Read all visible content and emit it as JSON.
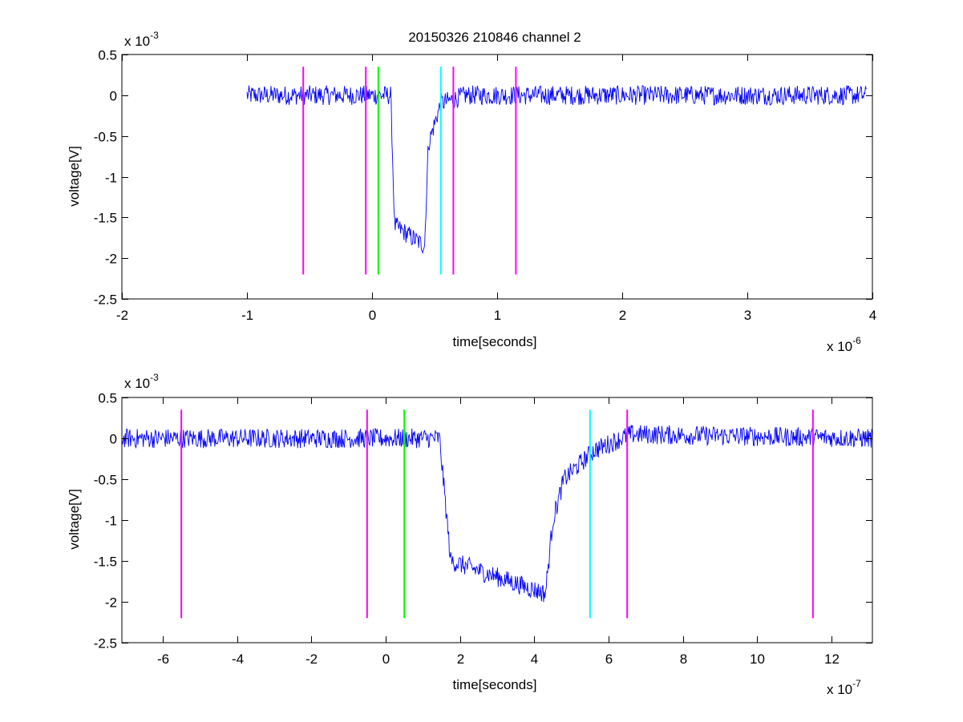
{
  "chart_data": [
    {
      "type": "line",
      "title": "20150326 210846 channel 2",
      "xlabel": "time[seconds]",
      "ylabel": "voltage[V]",
      "x_exponent_label": "x 10",
      "x_exponent": "-6",
      "y_exponent_label": "x 10",
      "y_exponent": "-3",
      "xlim": [
        -2,
        4
      ],
      "ylim": [
        -2.5,
        0.5
      ],
      "xticks": [
        -2,
        -1,
        0,
        1,
        2,
        3,
        4
      ],
      "xtick_labels": [
        "-2",
        "-1",
        "0",
        "1",
        "2",
        "3",
        "4"
      ],
      "yticks": [
        -2.5,
        -2,
        -1.5,
        -1,
        -0.5,
        0,
        0.5
      ],
      "ytick_labels": [
        "-2.5",
        "-2",
        "-1.5",
        "-1",
        "-0.5",
        "0",
        "0.5"
      ],
      "grid": false,
      "signal": {
        "color": "#0000ff",
        "xrange": [
          -1.0,
          3.95
        ],
        "noise_amplitude": 0.12,
        "breakpoints": [
          [
            -1.0,
            0
          ],
          [
            0.15,
            0
          ],
          [
            0.18,
            -1.6
          ],
          [
            0.42,
            -1.85
          ],
          [
            0.45,
            -0.6
          ],
          [
            0.55,
            -0.1
          ],
          [
            0.75,
            0
          ],
          [
            3.95,
            0
          ]
        ]
      },
      "markers": [
        {
          "x": -0.55,
          "color": "#ff00ff"
        },
        {
          "x": -0.05,
          "color": "#ff00ff"
        },
        {
          "x": 0.05,
          "color": "#00ff00"
        },
        {
          "x": 0.55,
          "color": "#00ffff"
        },
        {
          "x": 0.65,
          "color": "#ff00ff"
        },
        {
          "x": 1.15,
          "color": "#ff00ff"
        }
      ],
      "marker_bottom": -2.2,
      "marker_top": 0.35
    },
    {
      "type": "line",
      "title": "",
      "xlabel": "time[seconds]",
      "ylabel": "voltage[V]",
      "x_exponent_label": "x 10",
      "x_exponent": "-7",
      "y_exponent_label": "x 10",
      "y_exponent": "-3",
      "xlim": [
        -7.1,
        13.1
      ],
      "ylim": [
        -2.5,
        0.5
      ],
      "xticks": [
        -6,
        -4,
        -2,
        0,
        2,
        4,
        6,
        8,
        10,
        12
      ],
      "xtick_labels": [
        "-6",
        "-4",
        "-2",
        "0",
        "2",
        "4",
        "6",
        "8",
        "10",
        "12"
      ],
      "yticks": [
        -2.5,
        -2,
        -1.5,
        -1,
        -0.5,
        0,
        0.5
      ],
      "ytick_labels": [
        "-2.5",
        "-2",
        "-1.5",
        "-1",
        "-0.5",
        "0",
        "0.5"
      ],
      "grid": false,
      "signal": {
        "color": "#0000ff",
        "xrange": [
          -7.1,
          13.1
        ],
        "noise_amplitude": 0.12,
        "breakpoints": [
          [
            -7.1,
            0
          ],
          [
            1.45,
            0
          ],
          [
            1.75,
            -1.5
          ],
          [
            4.3,
            -1.9
          ],
          [
            4.5,
            -1.0
          ],
          [
            4.8,
            -0.5
          ],
          [
            5.6,
            -0.15
          ],
          [
            6.6,
            0.05
          ],
          [
            13.1,
            0
          ]
        ]
      },
      "markers": [
        {
          "x": -5.5,
          "color": "#ff00ff"
        },
        {
          "x": -0.5,
          "color": "#ff00ff"
        },
        {
          "x": 0.5,
          "color": "#00ff00"
        },
        {
          "x": 5.5,
          "color": "#00ffff"
        },
        {
          "x": 6.5,
          "color": "#ff00ff"
        },
        {
          "x": 11.5,
          "color": "#ff00ff"
        }
      ],
      "marker_bottom": -2.2,
      "marker_top": 0.35
    }
  ]
}
